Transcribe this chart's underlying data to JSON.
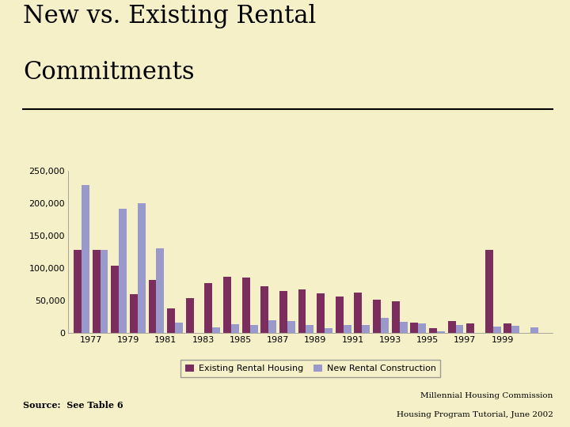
{
  "title_line1": "New vs. Existing Rental",
  "title_line2": "Commitments",
  "background_color": "#f5f0c8",
  "plot_bg_color": "#f5f0c8",
  "existing_color": "#7b2d5e",
  "new_color": "#9999cc",
  "years": [
    1976,
    1977,
    1978,
    1979,
    1980,
    1981,
    1982,
    1983,
    1984,
    1985,
    1986,
    1987,
    1988,
    1989,
    1990,
    1991,
    1992,
    1993,
    1994,
    1995,
    1996,
    1997,
    1998,
    1999,
    2000
  ],
  "existing": [
    128000,
    128000,
    104000,
    60000,
    82000,
    38000,
    54000,
    77000,
    87000,
    85000,
    72000,
    65000,
    67000,
    61000,
    56000,
    62000,
    51000,
    49000,
    16000,
    8000,
    18000,
    15000,
    128000,
    15000,
    0
  ],
  "new_construction": [
    228000,
    128000,
    191000,
    200000,
    131000,
    16000,
    0,
    9000,
    14000,
    12000,
    20000,
    19000,
    12000,
    7000,
    12000,
    13000,
    23000,
    17000,
    15000,
    3000,
    12000,
    0,
    10000,
    11000,
    9000
  ],
  "xtick_labels": [
    "1977",
    "1979",
    "1981",
    "1983",
    "1985",
    "1987",
    "1989",
    "1991",
    "1993",
    "1995",
    "1997",
    "1999"
  ],
  "xtick_positions": [
    1976.5,
    1978.5,
    1980.5,
    1982.5,
    1984.5,
    1986.5,
    1988.5,
    1990.5,
    1992.5,
    1994.5,
    1996.5,
    1998.5
  ],
  "ylim": [
    0,
    250000
  ],
  "yticks": [
    0,
    50000,
    100000,
    150000,
    200000,
    250000
  ],
  "ytick_labels": [
    "0",
    "50,000",
    "100,000",
    "150,000",
    "200,000",
    "250,000"
  ],
  "legend_existing": "Existing Rental Housing",
  "legend_new": "New Rental Construction",
  "source_text": "Source:  See Table 6",
  "footnote_line1": "Millennial Housing Commission",
  "footnote_line2": "Housing Program Tutorial, June 2002",
  "title_fontsize": 22,
  "axis_fontsize": 8,
  "legend_fontsize": 8,
  "bar_width": 0.42
}
